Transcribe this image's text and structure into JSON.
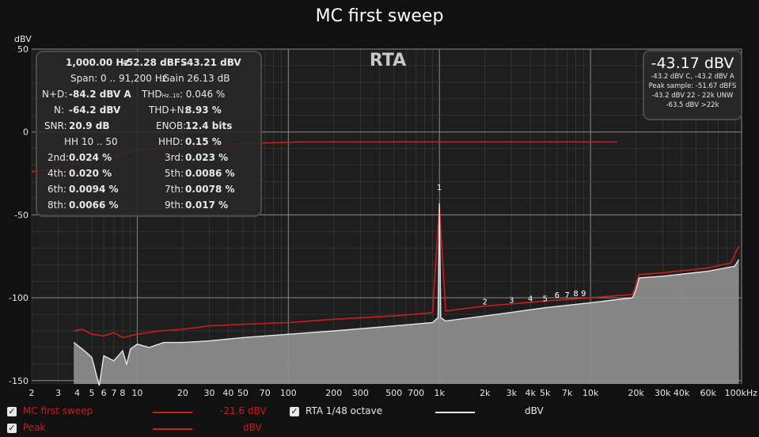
{
  "window": {
    "title": "MC first sweep"
  },
  "colors": {
    "background": "#111111",
    "plot": "#1e1e1e",
    "grid_major": "#8a8a8a",
    "grid_minor": "#3a3a3a",
    "series_red": "#cc1d1d",
    "series_white": "#e6e6e6",
    "fill": "#909090"
  },
  "stats": {
    "freq": "1,000.00 Hz",
    "dbfs": "-52.28 dBFS",
    "dbv": "-43.21 dBV",
    "span": "Span: 0 .. 91,200 Hz",
    "gain": "Gain 26.13 dB",
    "nd_label": "N+D:",
    "nd_value": "-84.2 dBV A",
    "thd_label": "THD",
    "thd_sub": "Hz..10",
    "thd_value": ": 0.046 %",
    "n_label": "N:",
    "n_value": "-64.2 dBV",
    "thdn_label": "THD+N:",
    "thdn_value": "8.93 %",
    "snr_label": "SNR:",
    "snr_value": "20.9 dB",
    "enob_label": "ENOB:",
    "enob_value": "12.4 bits",
    "hh_label": "HH 10 .. 50",
    "hhd_label": "HHD:",
    "hhd_value": "0.15 %",
    "harmonics": [
      {
        "label": "2nd:",
        "value": "0.024 %"
      },
      {
        "label": "3rd:",
        "value": "0.023 %"
      },
      {
        "label": "4th:",
        "value": "0.020 %"
      },
      {
        "label": "5th:",
        "value": "0.0086 %"
      },
      {
        "label": "6th:",
        "value": "0.0094 %"
      },
      {
        "label": "7th:",
        "value": "0.0078 %"
      },
      {
        "label": "8th:",
        "value": "0.0066 %"
      },
      {
        "label": "9th:",
        "value": "0.017 %"
      }
    ]
  },
  "rta_label": "RTA",
  "peak_box": {
    "value": "-43.17 dBV",
    "line1": "-43.2 dBV C, -43.2 dBV A",
    "line2": "Peak sample: -51.67 dBFS",
    "line3": "-43.2 dBV 22 - 22k UNW",
    "line4": "-63.5 dBV >22k"
  },
  "legend": {
    "items": [
      {
        "label": "MC first sweep",
        "value": "-21.6 dBV",
        "checked": true
      },
      {
        "label": "Peak",
        "value": "dBV",
        "checked": true
      },
      {
        "label": "RTA 1/48 octave",
        "value": "dBV",
        "checked": true
      }
    ]
  },
  "chart_data": {
    "type": "line",
    "title": "MC first sweep",
    "ylabel": "dBV",
    "xscale": "log",
    "xlim": [
      2,
      100000
    ],
    "ylim": [
      -152,
      50
    ],
    "y_ticks": [
      50,
      0,
      -50,
      -100,
      -150
    ],
    "x_ticks": [
      {
        "v": 2,
        "l": "2"
      },
      {
        "v": 3,
        "l": "3"
      },
      {
        "v": 4,
        "l": "4"
      },
      {
        "v": 5,
        "l": "5"
      },
      {
        "v": 6,
        "l": "6"
      },
      {
        "v": 7,
        "l": "7"
      },
      {
        "v": 8,
        "l": "8"
      },
      {
        "v": 10,
        "l": "10"
      },
      {
        "v": 20,
        "l": "20"
      },
      {
        "v": 30,
        "l": "30"
      },
      {
        "v": 40,
        "l": "40"
      },
      {
        "v": 50,
        "l": "50"
      },
      {
        "v": 70,
        "l": "70"
      },
      {
        "v": 100,
        "l": "100"
      },
      {
        "v": 200,
        "l": "200"
      },
      {
        "v": 300,
        "l": "300"
      },
      {
        "v": 500,
        "l": "500"
      },
      {
        "v": 700,
        "l": "700"
      },
      {
        "v": 1000,
        "l": "1k"
      },
      {
        "v": 2000,
        "l": "2k"
      },
      {
        "v": 3000,
        "l": "3k"
      },
      {
        "v": 4000,
        "l": "4k"
      },
      {
        "v": 5000,
        "l": "5k"
      },
      {
        "v": 7000,
        "l": "7k"
      },
      {
        "v": 10000,
        "l": "10k"
      },
      {
        "v": 20000,
        "l": "20k"
      },
      {
        "v": 30000,
        "l": "30k"
      },
      {
        "v": 40000,
        "l": "40k"
      },
      {
        "v": 60000,
        "l": "60k"
      },
      {
        "v": 100000,
        "l": "100kHz"
      }
    ],
    "harmonic_markers": [
      {
        "label": "1",
        "x": 1000,
        "y": -35
      },
      {
        "label": "2",
        "x": 2000,
        "y": -104
      },
      {
        "label": "3",
        "x": 3000,
        "y": -103
      },
      {
        "label": "4",
        "x": 4000,
        "y": -102
      },
      {
        "label": "5",
        "x": 5000,
        "y": -102
      },
      {
        "label": "6",
        "x": 6000,
        "y": -100
      },
      {
        "label": "7",
        "x": 7000,
        "y": -100
      },
      {
        "label": "8",
        "x": 8000,
        "y": -99
      },
      {
        "label": "9",
        "x": 9000,
        "y": -99
      }
    ],
    "series": [
      {
        "name": "MC first sweep",
        "x": [
          2,
          2.5,
          3,
          4,
          5,
          6,
          8,
          10,
          14,
          20,
          30,
          50,
          80,
          120,
          200,
          300,
          500,
          1000,
          3000,
          10000,
          15000
        ],
        "y": [
          -24,
          -23,
          -21,
          -19,
          -17,
          -15,
          -13,
          -11,
          -10,
          -9,
          -8,
          -7,
          -6.5,
          -6,
          -6,
          -6,
          -6,
          -6,
          -6,
          -6,
          -6
        ]
      },
      {
        "name": "Peak",
        "x": [
          3.8,
          4.3,
          5,
          6,
          7,
          8,
          10,
          14,
          20,
          30,
          50,
          100,
          200,
          500,
          900,
          1000,
          1100,
          2000,
          5000,
          10000,
          19000,
          20000,
          21000,
          30000,
          60000,
          85000,
          92000,
          96000
        ],
        "y": [
          -120,
          -119,
          -122,
          -123,
          -121,
          -124,
          -122,
          -120,
          -119,
          -117,
          -116,
          -115,
          -113,
          -111,
          -109,
          -45,
          -108,
          -105,
          -102,
          -100,
          -98,
          -92,
          -86,
          -85,
          -82,
          -79,
          -72,
          -69
        ]
      },
      {
        "name": "RTA 1/48 octave",
        "x": [
          3.8,
          4.2,
          4.6,
          5,
          5.6,
          6,
          7,
          8,
          8.5,
          9,
          10,
          12,
          15,
          20,
          30,
          50,
          100,
          200,
          500,
          900,
          980,
          1000,
          1020,
          1100,
          2000,
          5000,
          10000,
          19000,
          20000,
          21000,
          30000,
          60000,
          90000,
          96000
        ],
        "y": [
          -127,
          -130,
          -133,
          -136,
          -153,
          -135,
          -138,
          -132,
          -140,
          -131,
          -128,
          -130,
          -127,
          -127,
          -126,
          -124,
          -122,
          -120,
          -117,
          -115,
          -112,
          -43,
          -112,
          -114,
          -111,
          -106,
          -103,
          -100,
          -95,
          -88,
          -87,
          -84,
          -81,
          -77
        ]
      }
    ]
  }
}
